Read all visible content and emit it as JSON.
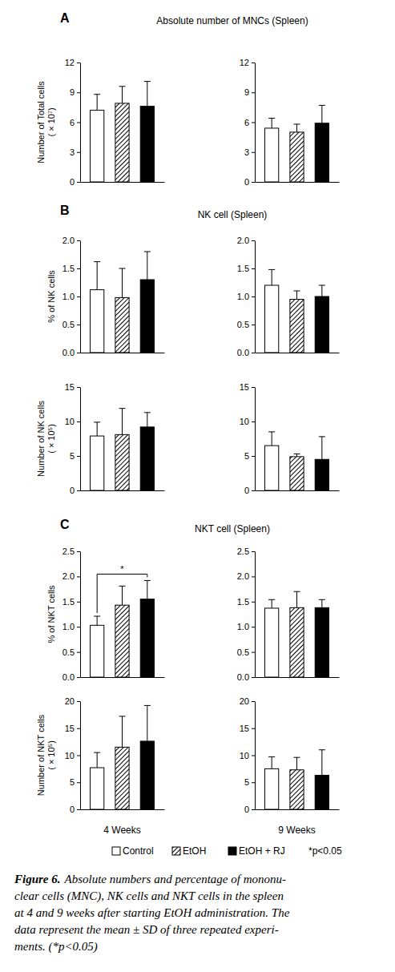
{
  "panels": [
    {
      "label": "A",
      "title": "Absolute number of MNCs (Spleen)"
    },
    {
      "label": "B",
      "title": "NK cell (Spleen)"
    },
    {
      "label": "C",
      "title": "NKT cell (Spleen)"
    }
  ],
  "series": [
    {
      "name": "Control",
      "color": "#ffffff",
      "marker": "solid"
    },
    {
      "name": "EtOH",
      "color": "#000000",
      "marker": "hatch"
    },
    {
      "name": "EtOH + RJ",
      "color": "#000000",
      "marker": "solid"
    }
  ],
  "x_labels": [
    "4 Weeks",
    "9 Weeks"
  ],
  "note": "*p<0.05",
  "caption_label": "Figure 6.",
  "caption_lines": [
    "Absolute numbers and percentage of mononu-",
    "clear cells (MNC), NK cells and NKT cells in the spleen",
    "at 4 and 9 weeks after starting EtOH administration. The",
    "data represent the mean ± SD of three repeated experi-",
    "ments. (*p<0.05)"
  ],
  "chart_data": [
    {
      "type": "bar",
      "ylabel": [
        "Number of Total cells",
        "( × 10⁷)"
      ],
      "values": [
        7.2,
        7.9,
        7.6
      ],
      "errors": [
        1.6,
        1.7,
        2.5
      ],
      "ylim": [
        0,
        12
      ],
      "yticks": [
        0,
        3,
        6,
        9,
        12
      ]
    },
    {
      "type": "bar",
      "values": [
        5.4,
        5.0,
        5.9
      ],
      "errors": [
        1.0,
        0.8,
        1.8
      ],
      "ylim": [
        0,
        12
      ],
      "yticks": [
        0,
        3,
        6,
        9,
        12
      ]
    },
    {
      "type": "bar",
      "ylabel": [
        "% of NK cells"
      ],
      "values": [
        1.12,
        0.98,
        1.3
      ],
      "errors": [
        0.5,
        0.52,
        0.5
      ],
      "ylim": [
        0,
        2
      ],
      "yticks": [
        {
          "value": 0,
          "label": "0.0"
        },
        0.5,
        {
          "value": 1,
          "label": "1.0"
        },
        1.5,
        {
          "value": 2,
          "label": "2.0"
        }
      ]
    },
    {
      "type": "bar",
      "values": [
        1.2,
        0.95,
        1.0
      ],
      "errors": [
        0.28,
        0.15,
        0.2
      ],
      "ylim": [
        0,
        2
      ],
      "yticks": [
        {
          "value": 0,
          "label": "0.0"
        },
        0.5,
        {
          "value": 1,
          "label": "1.0"
        },
        1.5,
        {
          "value": 2,
          "label": "2.0"
        }
      ]
    },
    {
      "type": "bar",
      "ylabel": [
        "Number of NK cells",
        "( × 10⁵)"
      ],
      "values": [
        7.9,
        8.1,
        9.2
      ],
      "errors": [
        2.0,
        3.8,
        2.1
      ],
      "ylim": [
        0,
        15
      ],
      "yticks": [
        0,
        5,
        10,
        15
      ]
    },
    {
      "type": "bar",
      "values": [
        6.5,
        4.9,
        4.5
      ],
      "errors": [
        2.0,
        0.4,
        3.3
      ],
      "ylim": [
        0,
        15
      ],
      "yticks": [
        0,
        5,
        10,
        15
      ]
    },
    {
      "type": "bar",
      "ylabel": [
        "% of NKT cells"
      ],
      "values": [
        1.03,
        1.43,
        1.55
      ],
      "errors": [
        0.18,
        0.38,
        0.37
      ],
      "ylim": [
        0,
        2.5
      ],
      "yticks": [
        {
          "value": 0,
          "label": "0.0"
        },
        0.5,
        {
          "value": 1,
          "label": "1.0"
        },
        1.5,
        {
          "value": 2,
          "label": "2.0"
        },
        2.5
      ],
      "annotations": [
        {
          "text": "*",
          "from": 0,
          "to": 2
        }
      ]
    },
    {
      "type": "bar",
      "values": [
        1.37,
        1.38,
        1.38
      ],
      "errors": [
        0.17,
        0.32,
        0.16
      ],
      "ylim": [
        0,
        2.5
      ],
      "yticks": [
        {
          "value": 0,
          "label": "0.0"
        },
        0.5,
        {
          "value": 1,
          "label": "1.0"
        },
        1.5,
        {
          "value": 2,
          "label": "2.0"
        },
        2.5
      ]
    },
    {
      "type": "bar",
      "ylabel": [
        "Number of NKT cells",
        "( × 10⁵)"
      ],
      "values": [
        7.7,
        11.5,
        12.6
      ],
      "errors": [
        2.8,
        5.7,
        6.6
      ],
      "ylim": [
        0,
        20
      ],
      "yticks": [
        0,
        5,
        10,
        15,
        20
      ]
    },
    {
      "type": "bar",
      "values": [
        7.5,
        7.3,
        6.3
      ],
      "errors": [
        2.2,
        2.3,
        4.7
      ],
      "ylim": [
        0,
        20
      ],
      "yticks": [
        0,
        5,
        10,
        15,
        20
      ]
    }
  ]
}
